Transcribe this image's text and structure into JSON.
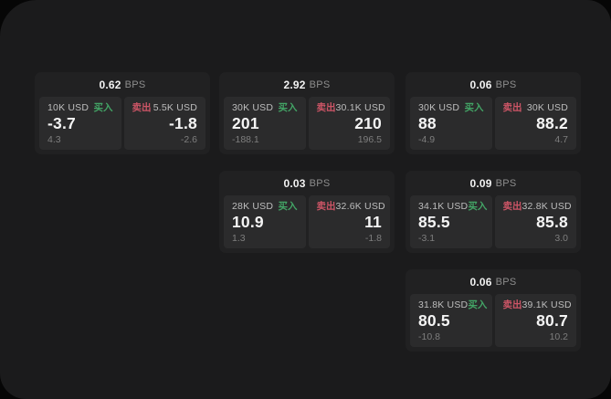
{
  "labels": {
    "bps_unit": "BPS",
    "buy": "买入",
    "sell": "卖出"
  },
  "colors": {
    "buy": "#43a566",
    "sell": "#cd5566",
    "card_bg": "#212122",
    "tile_bg": "#2b2b2c",
    "panel_bg": "#1b1b1c",
    "page_bg": "#060606"
  },
  "cards": [
    {
      "bps": "0.62",
      "col": 1,
      "row": 1,
      "buy": {
        "notional": "10K USD",
        "value": "-3.7",
        "delta": "4.3"
      },
      "sell": {
        "notional": "5.5K USD",
        "value": "-1.8",
        "delta": "-2.6"
      }
    },
    {
      "bps": "2.92",
      "col": 2,
      "row": 1,
      "buy": {
        "notional": "30K USD",
        "value": "201",
        "delta": "-188.1"
      },
      "sell": {
        "notional": "30.1K USD",
        "value": "210",
        "delta": "196.5"
      }
    },
    {
      "bps": "0.06",
      "col": 3,
      "row": 1,
      "buy": {
        "notional": "30K USD",
        "value": "88",
        "delta": "-4.9"
      },
      "sell": {
        "notional": "30K USD",
        "value": "88.2",
        "delta": "4.7"
      }
    },
    {
      "bps": "0.03",
      "col": 2,
      "row": 2,
      "buy": {
        "notional": "28K USD",
        "value": "10.9",
        "delta": "1.3"
      },
      "sell": {
        "notional": "32.6K USD",
        "value": "11",
        "delta": "-1.8"
      }
    },
    {
      "bps": "0.09",
      "col": 3,
      "row": 2,
      "buy": {
        "notional": "34.1K USD",
        "value": "85.5",
        "delta": "-3.1"
      },
      "sell": {
        "notional": "32.8K USD",
        "value": "85.8",
        "delta": "3.0"
      }
    },
    {
      "bps": "0.06",
      "col": 3,
      "row": 3,
      "buy": {
        "notional": "31.8K USD",
        "value": "80.5",
        "delta": "-10.8"
      },
      "sell": {
        "notional": "39.1K USD",
        "value": "80.7",
        "delta": "10.2"
      }
    }
  ]
}
